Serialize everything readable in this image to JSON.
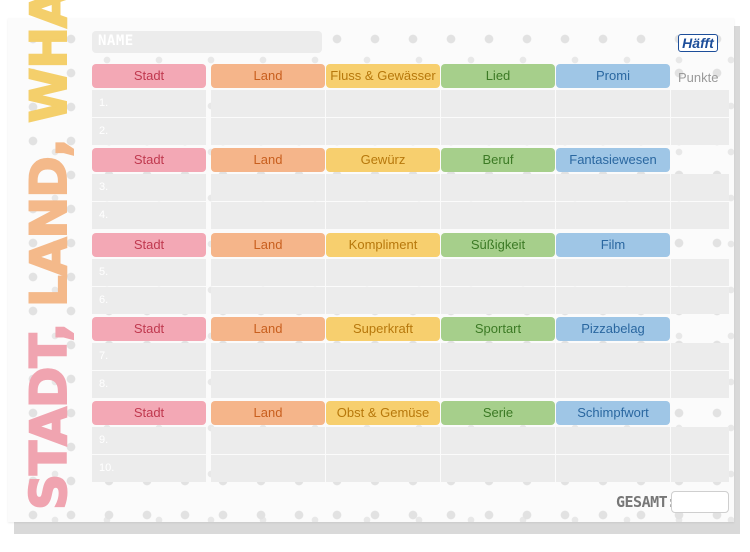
{
  "sheet": {
    "name_label": "NAME",
    "logo_text": "Häfft",
    "title_parts": [
      "STADT, ",
      "LAND, ",
      "WHAT?"
    ],
    "title_colors": [
      "#f0a4b0",
      "#f4b98a",
      "#f4cf6b"
    ],
    "points_label": "Punkte",
    "total_label": "GESAMT:"
  },
  "column_colors": [
    {
      "bg": "#f3a8b5",
      "fg": "#c0394f"
    },
    {
      "bg": "#f5b58a",
      "fg": "#c85f1e"
    },
    {
      "bg": "#f7cf6e",
      "fg": "#b7780c"
    },
    {
      "bg": "#a6cf8b",
      "fg": "#3c7a25"
    },
    {
      "bg": "#9fc6e6",
      "fg": "#2a67a0"
    }
  ],
  "rounds": [
    {
      "categories": [
        "Stadt",
        "Land",
        "Fluss & Gewässer",
        "Lied",
        "Promi"
      ],
      "row_numbers": [
        "1.",
        "2."
      ]
    },
    {
      "categories": [
        "Stadt",
        "Land",
        "Gewürz",
        "Beruf",
        "Fantasiewesen"
      ],
      "row_numbers": [
        "3.",
        "4."
      ]
    },
    {
      "categories": [
        "Stadt",
        "Land",
        "Kompliment",
        "Süßigkeit",
        "Film"
      ],
      "row_numbers": [
        "5.",
        "6."
      ]
    },
    {
      "categories": [
        "Stadt",
        "Land",
        "Superkraft",
        "Sportart",
        "Pizzabelag"
      ],
      "row_numbers": [
        "7.",
        "8."
      ]
    },
    {
      "categories": [
        "Stadt",
        "Land",
        "Obst & Gemüse",
        "Serie",
        "Schimpfwort"
      ],
      "row_numbers": [
        "9.",
        "10."
      ]
    }
  ]
}
